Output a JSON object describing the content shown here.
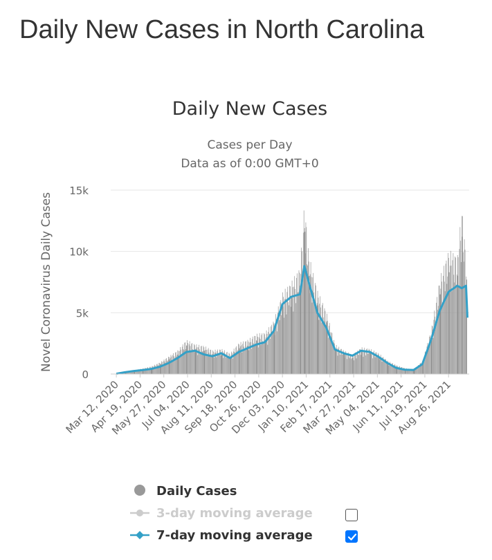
{
  "page": {
    "title": "Daily New Cases in North Carolina"
  },
  "colors": {
    "bars": "#999999",
    "ma7": "#33a0c7",
    "ma3_disabled": "#cccccc",
    "checkbox": "#0075ff"
  },
  "chart_data": {
    "type": "bar",
    "title": "Daily New Cases",
    "subtitle_line1": "Cases per Day",
    "subtitle_line2": "Data as of 0:00 GMT+0",
    "ylabel": "Novel Coronavirus Daily Cases",
    "xlabel": "",
    "ylim": [
      0,
      15000
    ],
    "yticks": [
      {
        "value": 0,
        "label": "0"
      },
      {
        "value": 5000,
        "label": "5k"
      },
      {
        "value": 10000,
        "label": "10k"
      },
      {
        "value": 15000,
        "label": "15k"
      }
    ],
    "x_range": [
      "2020-03-03",
      "2021-09-28"
    ],
    "x_tick_labels": [
      {
        "label": "Mar 12, 2020",
        "date": "2020-03-12"
      },
      {
        "label": "Apr 19, 2020",
        "date": "2020-04-19"
      },
      {
        "label": "May 27, 2020",
        "date": "2020-05-27"
      },
      {
        "label": "Jul 04, 2020",
        "date": "2020-07-04"
      },
      {
        "label": "Aug 11, 2020",
        "date": "2020-08-11"
      },
      {
        "label": "Sep 18, 2020",
        "date": "2020-09-18"
      },
      {
        "label": "Oct 26, 2020",
        "date": "2020-10-26"
      },
      {
        "label": "Dec 03, 2020",
        "date": "2020-12-03"
      },
      {
        "label": "Jan 10, 2021",
        "date": "2021-01-10"
      },
      {
        "label": "Feb 17, 2021",
        "date": "2021-02-17"
      },
      {
        "label": "Mar 27, 2021",
        "date": "2021-03-27"
      },
      {
        "label": "May 04, 2021",
        "date": "2021-05-04"
      },
      {
        "label": "Jun 11, 2021",
        "date": "2021-06-11"
      },
      {
        "label": "Jul 19, 2021",
        "date": "2021-07-19"
      },
      {
        "label": "Aug 26, 2021",
        "date": "2021-08-26"
      }
    ],
    "series": [
      {
        "name": "Daily Cases",
        "type": "bar",
        "dates": [
          "2020-03-12",
          "2020-03-26",
          "2020-04-09",
          "2020-04-23",
          "2020-05-07",
          "2020-05-21",
          "2020-06-04",
          "2020-06-18",
          "2020-07-02",
          "2020-07-16",
          "2020-07-30",
          "2020-08-13",
          "2020-08-27",
          "2020-09-10",
          "2020-09-24",
          "2020-10-08",
          "2020-10-22",
          "2020-11-05",
          "2020-11-19",
          "2020-12-03",
          "2020-12-17",
          "2020-12-31",
          "2021-01-07",
          "2021-01-14",
          "2021-01-28",
          "2021-02-11",
          "2021-02-25",
          "2021-03-11",
          "2021-03-25",
          "2021-04-08",
          "2021-04-22",
          "2021-05-06",
          "2021-05-20",
          "2021-06-03",
          "2021-06-17",
          "2021-07-01",
          "2021-07-15",
          "2021-07-29",
          "2021-08-12",
          "2021-08-26",
          "2021-09-09",
          "2021-09-16",
          "2021-09-23"
        ],
        "values": [
          10,
          120,
          250,
          380,
          520,
          800,
          1200,
          1600,
          2300,
          2000,
          1900,
          1600,
          1700,
          1400,
          2100,
          2300,
          2700,
          2800,
          3600,
          5500,
          6200,
          7200,
          11600,
          8000,
          5600,
          4200,
          2000,
          1600,
          1300,
          1800,
          1700,
          1400,
          900,
          600,
          400,
          300,
          900,
          3000,
          6500,
          8300,
          8000,
          11200,
          7700
        ]
      },
      {
        "name": "7-day moving average",
        "type": "line",
        "dates": [
          "2020-03-12",
          "2020-03-26",
          "2020-04-09",
          "2020-04-23",
          "2020-05-07",
          "2020-05-21",
          "2020-06-04",
          "2020-06-18",
          "2020-07-02",
          "2020-07-16",
          "2020-07-30",
          "2020-08-13",
          "2020-08-27",
          "2020-09-10",
          "2020-09-24",
          "2020-10-08",
          "2020-10-22",
          "2020-11-05",
          "2020-11-19",
          "2020-12-03",
          "2020-12-17",
          "2020-12-31",
          "2021-01-07",
          "2021-01-14",
          "2021-01-28",
          "2021-02-11",
          "2021-02-25",
          "2021-03-11",
          "2021-03-25",
          "2021-04-08",
          "2021-04-22",
          "2021-05-06",
          "2021-05-20",
          "2021-06-03",
          "2021-06-17",
          "2021-07-01",
          "2021-07-15",
          "2021-07-29",
          "2021-08-12",
          "2021-08-26",
          "2021-09-09",
          "2021-09-16",
          "2021-09-23"
        ],
        "values": [
          20,
          150,
          250,
          320,
          420,
          600,
          900,
          1300,
          1800,
          1900,
          1600,
          1450,
          1700,
          1300,
          1800,
          2100,
          2400,
          2600,
          3500,
          5700,
          6300,
          6500,
          8800,
          7500,
          5000,
          3800,
          2000,
          1700,
          1500,
          1900,
          1800,
          1400,
          900,
          500,
          350,
          330,
          800,
          2800,
          5200,
          6700,
          7200,
          7000,
          7200
        ]
      }
    ],
    "legend": [
      {
        "label": "Daily Cases",
        "state": "active"
      },
      {
        "label": "3-day moving average",
        "state": "hidden",
        "checked": false
      },
      {
        "label": "7-day moving average",
        "state": "active",
        "checked": true
      }
    ]
  }
}
